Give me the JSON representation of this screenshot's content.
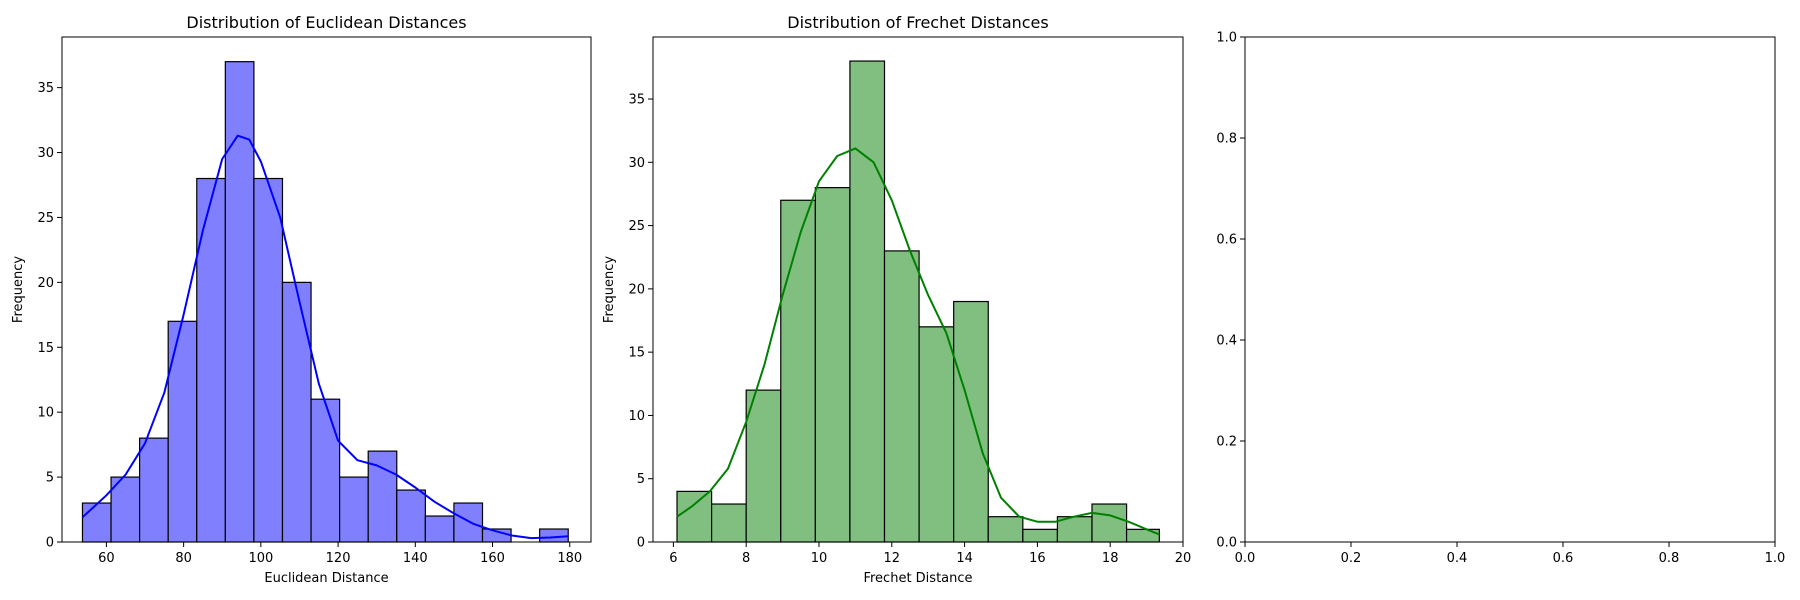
{
  "chart_data": [
    {
      "type": "histogram",
      "title": "Distribution of Euclidean Distances",
      "xlabel": "Euclidean Distance",
      "ylabel": "Frequency",
      "xlim": [
        48.5,
        185.5
      ],
      "ylim": [
        0,
        38.9
      ],
      "xticks": [
        60,
        80,
        100,
        120,
        140,
        160,
        180
      ],
      "yticks": [
        0,
        5,
        10,
        15,
        20,
        25,
        30,
        35
      ],
      "bin_edges": [
        53.8,
        61.2,
        68.6,
        76.0,
        83.4,
        90.8,
        98.2,
        105.6,
        113.0,
        120.4,
        127.8,
        135.2,
        142.6,
        150.0,
        157.4,
        164.8,
        172.2,
        179.6
      ],
      "counts": [
        3,
        5,
        8,
        17,
        28,
        37,
        28,
        20,
        11,
        5,
        7,
        4,
        2,
        3,
        1,
        0,
        1
      ],
      "kde": {
        "x": [
          53.8,
          60,
          65,
          70,
          75,
          80,
          85,
          90,
          94,
          97,
          100,
          105,
          110,
          115,
          120,
          125,
          130,
          135,
          140,
          145,
          150,
          155,
          160,
          165,
          170,
          175,
          179.6
        ],
        "y": [
          1.9,
          3.6,
          5.2,
          7.6,
          11.5,
          17.5,
          24.0,
          29.5,
          31.3,
          31.0,
          29.3,
          25.0,
          18.5,
          12.2,
          7.8,
          6.3,
          5.9,
          5.2,
          4.2,
          3.1,
          2.2,
          1.4,
          0.9,
          0.5,
          0.3,
          0.35,
          0.45
        ]
      },
      "colors": {
        "fill": "#8080ff",
        "edge": "#000000",
        "kde": "#0000ff"
      }
    },
    {
      "type": "histogram",
      "title": "Distribution of Frechet Distances",
      "xlabel": "Frechet Distance",
      "ylabel": "Frequency",
      "xlim": [
        5.44,
        20.0
      ],
      "ylim": [
        0,
        39.9
      ],
      "xticks": [
        6,
        8,
        10,
        12,
        14,
        16,
        18,
        20
      ],
      "yticks": [
        0,
        5,
        10,
        15,
        20,
        25,
        30,
        35
      ],
      "bin_edges": [
        6.1,
        7.05,
        8.0,
        8.95,
        9.9,
        10.85,
        11.8,
        12.75,
        13.7,
        14.65,
        15.6,
        16.55,
        17.5,
        18.45,
        19.35
      ],
      "counts": [
        4,
        3,
        12,
        27,
        28,
        38,
        23,
        17,
        19,
        2,
        1,
        2,
        3,
        1
      ],
      "kde": {
        "x": [
          6.1,
          6.5,
          7,
          7.5,
          8,
          8.5,
          9,
          9.5,
          10,
          10.5,
          11,
          11.5,
          12,
          12.5,
          13,
          13.5,
          14,
          14.5,
          15,
          15.5,
          16,
          16.5,
          17,
          17.5,
          18,
          18.5,
          19,
          19.35
        ],
        "y": [
          2.0,
          2.8,
          4.0,
          5.8,
          9.5,
          14.0,
          19.5,
          24.5,
          28.5,
          30.5,
          31.1,
          30.0,
          27.0,
          23.0,
          19.5,
          16.5,
          12.0,
          7.0,
          3.5,
          2.0,
          1.6,
          1.6,
          2.0,
          2.3,
          2.1,
          1.6,
          1.0,
          0.6
        ]
      },
      "colors": {
        "fill": "#80bf80",
        "edge": "#000000",
        "kde": "#008000"
      }
    },
    {
      "type": "empty",
      "xlim": [
        0,
        1
      ],
      "ylim": [
        0,
        1
      ],
      "xticks": [
        0.0,
        0.2,
        0.4,
        0.6,
        0.8,
        1.0
      ],
      "yticks": [
        0.0,
        0.2,
        0.4,
        0.6,
        0.8,
        1.0
      ],
      "xticklabels": [
        "0.0",
        "0.2",
        "0.4",
        "0.6",
        "0.8",
        "1.0"
      ],
      "yticklabels": [
        "0.0",
        "0.2",
        "0.4",
        "0.6",
        "0.8",
        "1.0"
      ]
    }
  ]
}
